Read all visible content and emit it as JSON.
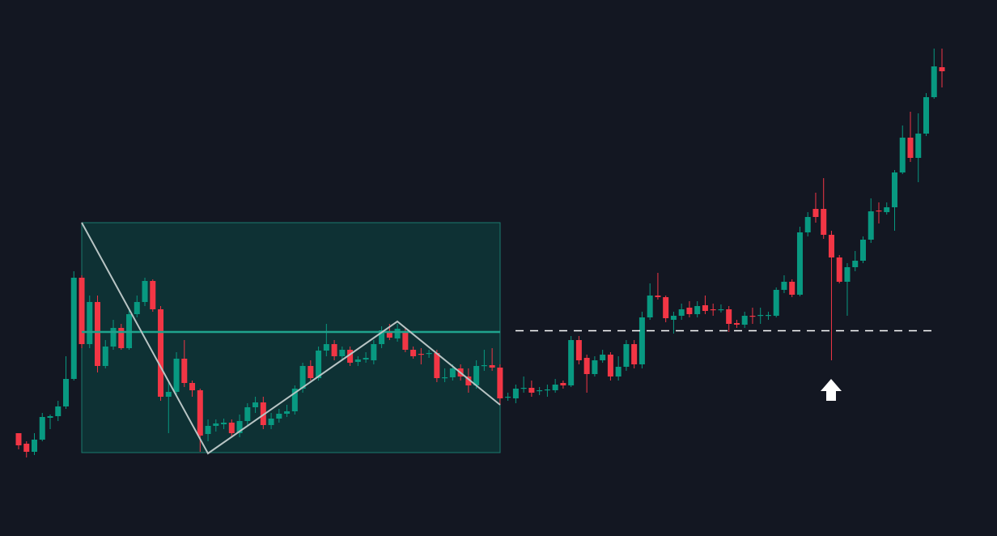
{
  "chart_data": {
    "type": "candlestick",
    "open": [
      127,
      114,
      104,
      119,
      146,
      148,
      160,
      194,
      319,
      237,
      289,
      210,
      234,
      257,
      232,
      274,
      289,
      315,
      280,
      172,
      178,
      219,
      189,
      180,
      126,
      136,
      138,
      140,
      127,
      142,
      159,
      165,
      137,
      145,
      151,
      154,
      182,
      210,
      195,
      229,
      237,
      222,
      230,
      215,
      218,
      217,
      237,
      252,
      244,
      252,
      230,
      225,
      225,
      226,
      195,
      196,
      207,
      197,
      186,
      210,
      211,
      208,
      171,
      170,
      182,
      183,
      179,
      180,
      180,
      189,
      186,
      242,
      220,
      200,
      217,
      224,
      197,
      209,
      237,
      212,
      270,
      297,
      295,
      267,
      272,
      282,
      274,
      285,
      280,
      279,
      280,
      263,
      261,
      272,
      272,
      272,
      272,
      304,
      314,
      298,
      375,
      404,
      404,
      372,
      344,
      314,
      332,
      340,
      366,
      402,
      400,
      406,
      449,
      492,
      467,
      497,
      542,
      579
    ],
    "high": [
      127,
      117,
      127,
      152,
      150,
      167,
      222,
      327,
      322,
      297,
      297,
      242,
      267,
      262,
      282,
      297,
      319,
      317,
      284,
      192,
      227,
      242,
      192,
      182,
      144,
      144,
      145,
      144,
      150,
      164,
      172,
      172,
      152,
      157,
      162,
      186,
      214,
      217,
      234,
      262,
      242,
      234,
      234,
      222,
      227,
      242,
      259,
      262,
      262,
      257,
      234,
      232,
      230,
      230,
      207,
      212,
      212,
      207,
      217,
      230,
      232,
      212,
      177,
      187,
      197,
      192,
      184,
      187,
      194,
      192,
      247,
      247,
      224,
      222,
      230,
      227,
      222,
      242,
      242,
      277,
      312,
      325,
      297,
      277,
      287,
      290,
      290,
      297,
      287,
      286,
      284,
      267,
      277,
      282,
      282,
      277,
      307,
      322,
      317,
      382,
      400,
      424,
      442,
      377,
      347,
      337,
      352,
      370,
      417,
      412,
      412,
      452,
      507,
      524,
      522,
      547,
      602,
      602
    ],
    "low": [
      107,
      97,
      100,
      117,
      132,
      142,
      157,
      192,
      232,
      232,
      202,
      207,
      230,
      230,
      230,
      270,
      284,
      277,
      167,
      127,
      172,
      184,
      172,
      104,
      117,
      129,
      132,
      122,
      122,
      137,
      152,
      132,
      132,
      140,
      147,
      150,
      177,
      192,
      192,
      222,
      217,
      217,
      210,
      210,
      214,
      212,
      232,
      242,
      240,
      227,
      219,
      212,
      220,
      190,
      190,
      192,
      192,
      177,
      182,
      204,
      204,
      162,
      167,
      164,
      177,
      172,
      174,
      172,
      177,
      182,
      184,
      212,
      177,
      197,
      214,
      192,
      192,
      204,
      207,
      207,
      267,
      292,
      264,
      250,
      267,
      270,
      270,
      274,
      272,
      276,
      252,
      257,
      257,
      262,
      262,
      267,
      270,
      300,
      295,
      296,
      370,
      387,
      367,
      217,
      312,
      272,
      327,
      337,
      362,
      386,
      397,
      377,
      447,
      462,
      437,
      494,
      540,
      554
    ],
    "close": [
      112,
      104,
      119,
      147,
      148,
      160,
      194,
      319,
      237,
      289,
      210,
      234,
      257,
      232,
      274,
      289,
      315,
      280,
      172,
      178,
      219,
      189,
      180,
      124,
      136,
      139,
      140,
      127,
      142,
      159,
      165,
      137,
      145,
      151,
      154,
      182,
      210,
      195,
      229,
      237,
      222,
      230,
      214,
      218,
      220,
      237,
      254,
      245,
      256,
      230,
      222,
      224,
      226,
      195,
      196,
      207,
      197,
      186,
      210,
      211,
      208,
      170,
      172,
      182,
      183,
      177,
      180,
      181,
      187,
      186,
      242,
      217,
      200,
      217,
      224,
      197,
      209,
      237,
      212,
      270,
      297,
      295,
      269,
      272,
      280,
      274,
      284,
      278,
      279,
      280,
      262,
      261,
      272,
      271,
      273,
      273,
      304,
      314,
      298,
      375,
      394,
      394,
      372,
      344,
      314,
      332,
      340,
      366,
      401,
      401,
      406,
      449,
      492,
      467,
      497,
      542,
      580,
      574
    ],
    "up_color": "#089981",
    "down_color": "#f23645",
    "ylim": [
      0,
      662
    ]
  }
}
